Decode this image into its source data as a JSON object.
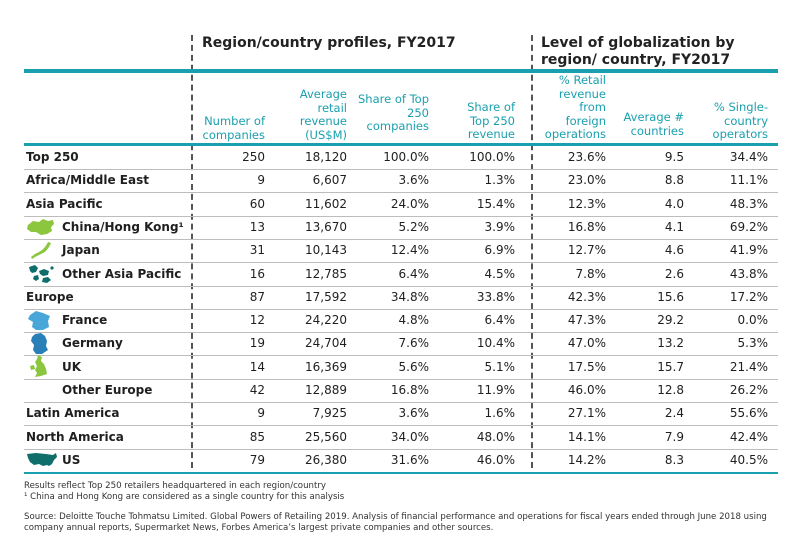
{
  "sections": {
    "profiles_title": "Region/country profiles, FY2017",
    "globalization_title": "Level of globalization by region/ country, FY2017"
  },
  "colors": {
    "accent": "#199fae",
    "map_green": "#8cc63f",
    "map_blue": "#2b7fb8",
    "map_dark_teal": "#0f6d6a",
    "map_light_blue": "#48a7d8"
  },
  "columns": [
    "Number of companies",
    "Average retail revenue (US$M)",
    "Share of Top 250 companies",
    "Share of Top 250 revenue",
    "% Retail revenue from foreign operations",
    "Average # countries",
    "% Single-country operators"
  ],
  "rows": [
    {
      "label": "Top 250",
      "level": "region",
      "icon": "",
      "values": [
        "250",
        "18,120",
        "100.0%",
        "100.0%",
        "23.6%",
        "9.5",
        "34.4%"
      ]
    },
    {
      "label": "Africa/Middle East",
      "level": "region",
      "icon": "",
      "values": [
        "9",
        "6,607",
        "3.6%",
        "1.3%",
        "23.0%",
        "8.8",
        "11.1%"
      ]
    },
    {
      "label": "Asia Pacific",
      "level": "region",
      "icon": "",
      "values": [
        "60",
        "11,602",
        "24.0%",
        "15.4%",
        "12.3%",
        "4.0",
        "48.3%"
      ]
    },
    {
      "label": "China/Hong Kong¹",
      "level": "country",
      "icon": "china-map-icon",
      "values": [
        "13",
        "13,670",
        "5.2%",
        "3.9%",
        "16.8%",
        "4.1",
        "69.2%"
      ]
    },
    {
      "label": "Japan",
      "level": "country",
      "icon": "japan-map-icon",
      "values": [
        "31",
        "10,143",
        "12.4%",
        "6.9%",
        "12.7%",
        "4.6",
        "41.9%"
      ]
    },
    {
      "label": "Other Asia Pacific",
      "level": "country",
      "icon": "asia-pacific-map-icon",
      "values": [
        "16",
        "12,785",
        "6.4%",
        "4.5%",
        "7.8%",
        "2.6",
        "43.8%"
      ]
    },
    {
      "label": "Europe",
      "level": "region",
      "icon": "",
      "values": [
        "87",
        "17,592",
        "34.8%",
        "33.8%",
        "42.3%",
        "15.6",
        "17.2%"
      ]
    },
    {
      "label": "France",
      "level": "country",
      "icon": "france-map-icon",
      "values": [
        "12",
        "24,220",
        "4.8%",
        "6.4%",
        "47.3%",
        "29.2",
        "0.0%"
      ]
    },
    {
      "label": "Germany",
      "level": "country",
      "icon": "germany-map-icon",
      "values": [
        "19",
        "24,704",
        "7.6%",
        "10.4%",
        "47.0%",
        "13.2",
        "5.3%"
      ]
    },
    {
      "label": "UK",
      "level": "country",
      "icon": "uk-map-icon",
      "values": [
        "14",
        "16,369",
        "5.6%",
        "5.1%",
        "17.5%",
        "15.7",
        "21.4%"
      ]
    },
    {
      "label": "Other Europe",
      "level": "country",
      "icon": "",
      "values": [
        "42",
        "12,889",
        "16.8%",
        "11.9%",
        "46.0%",
        "12.8",
        "26.2%"
      ]
    },
    {
      "label": "Latin America",
      "level": "region",
      "icon": "",
      "values": [
        "9",
        "7,925",
        "3.6%",
        "1.6%",
        "27.1%",
        "2.4",
        "55.6%"
      ]
    },
    {
      "label": "North America",
      "level": "region",
      "icon": "",
      "values": [
        "85",
        "25,560",
        "34.0%",
        "48.0%",
        "14.1%",
        "7.9",
        "42.4%"
      ]
    },
    {
      "label": "US",
      "level": "country",
      "icon": "us-map-icon",
      "values": [
        "79",
        "26,380",
        "31.6%",
        "46.0%",
        "14.2%",
        "8.3",
        "40.5%"
      ]
    }
  ],
  "footnotes": [
    "Results reflect Top 250 retailers headquartered in each region/country",
    "¹ China and Hong Kong are considered as a single country for this analysis"
  ],
  "source": [
    "Source: Deloitte Touche Tohmatsu Limited. Global Powers of Retailing 2019. Analysis of financial performance and operations for fiscal years ended through June 2018 using",
    "company annual reports, Supermarket News, Forbes America’s largest private companies and other sources."
  ]
}
